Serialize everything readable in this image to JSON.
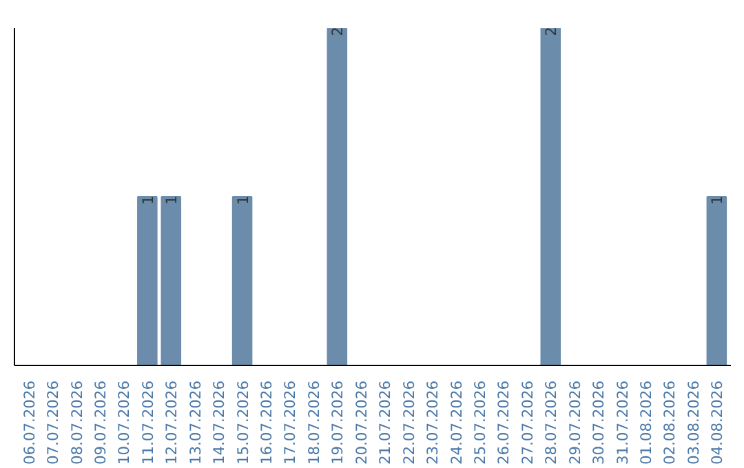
{
  "chart_data": {
    "type": "bar",
    "categories": [
      "06.07.2026",
      "07.07.2026",
      "08.07.2026",
      "09.07.2026",
      "10.07.2026",
      "11.07.2026",
      "12.07.2026",
      "13.07.2026",
      "14.07.2026",
      "15.07.2026",
      "16.07.2026",
      "17.07.2026",
      "18.07.2026",
      "19.07.2026",
      "20.07.2026",
      "21.07.2026",
      "22.07.2026",
      "23.07.2026",
      "24.07.2026",
      "25.07.2026",
      "26.07.2026",
      "27.07.2026",
      "28.07.2026",
      "29.07.2026",
      "30.07.2026",
      "31.07.2026",
      "01.08.2026",
      "02.08.2026",
      "03.08.2026",
      "04.08.2026"
    ],
    "values": [
      0,
      0,
      0,
      0,
      0,
      1,
      1,
      0,
      0,
      1,
      0,
      0,
      0,
      2,
      0,
      0,
      0,
      0,
      0,
      0,
      0,
      0,
      2,
      0,
      0,
      0,
      0,
      0,
      0,
      1
    ],
    "value_labels": [
      null,
      null,
      null,
      null,
      null,
      "1",
      "1",
      null,
      null,
      "1",
      null,
      null,
      null,
      "2",
      null,
      null,
      null,
      null,
      null,
      null,
      null,
      null,
      "2",
      null,
      null,
      null,
      null,
      null,
      null,
      "1"
    ],
    "color": "#6b8cab",
    "ylim": [
      0,
      2
    ],
    "tick_labels": "x",
    "grid": false
  }
}
